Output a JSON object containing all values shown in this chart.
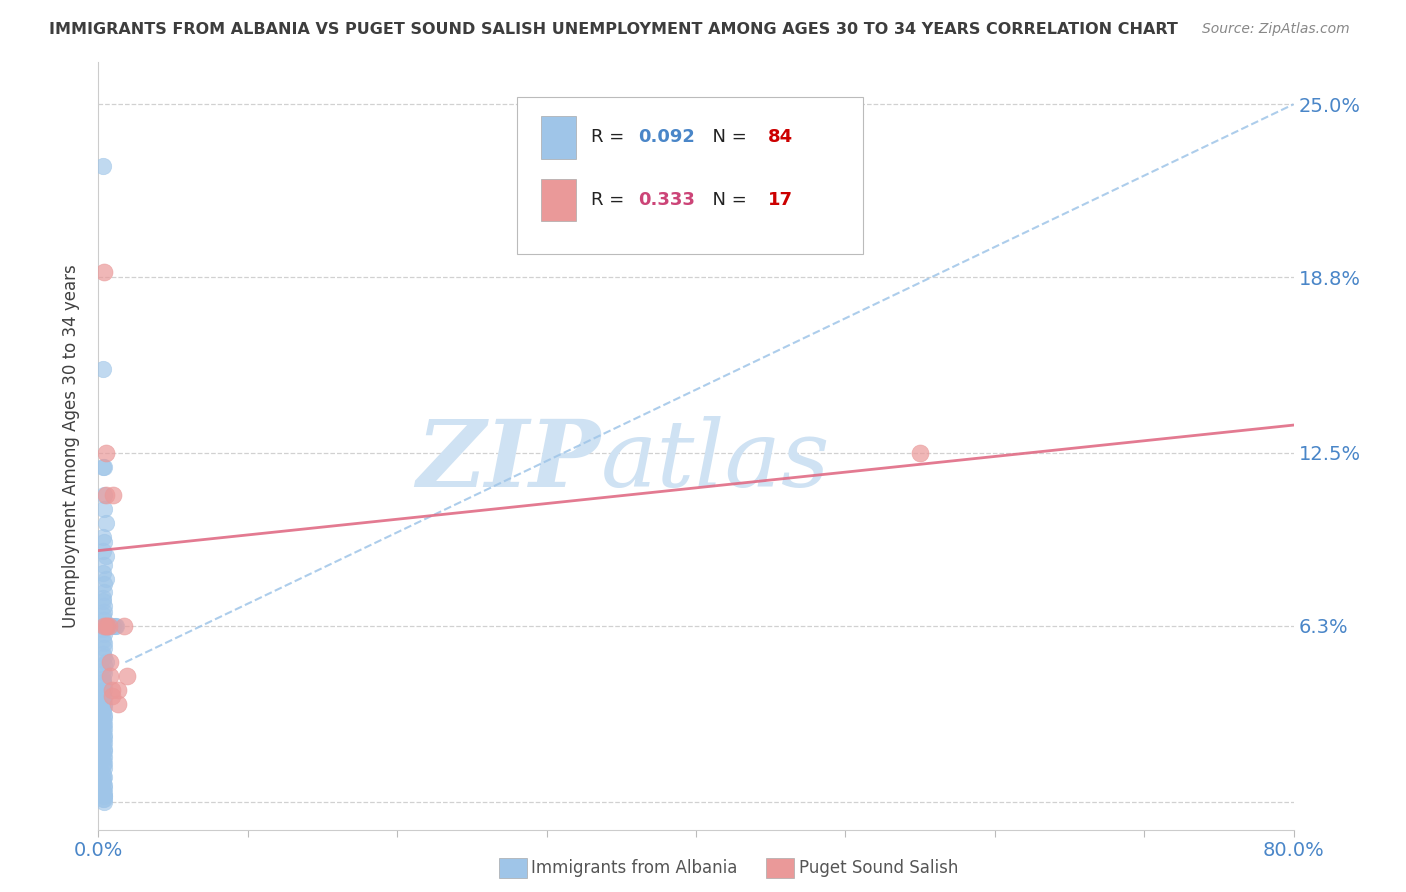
{
  "title": "IMMIGRANTS FROM ALBANIA VS PUGET SOUND SALISH UNEMPLOYMENT AMONG AGES 30 TO 34 YEARS CORRELATION CHART",
  "source": "Source: ZipAtlas.com",
  "ylabel": "Unemployment Among Ages 30 to 34 years",
  "yticks": [
    0.0,
    0.063,
    0.125,
    0.188,
    0.25
  ],
  "ytick_labels": [
    "",
    "6.3%",
    "12.5%",
    "18.8%",
    "25.0%"
  ],
  "xlim": [
    0.0,
    0.8
  ],
  "ylim": [
    -0.01,
    0.265
  ],
  "albania_R": 0.092,
  "albania_N": 84,
  "salish_R": 0.333,
  "salish_N": 17,
  "blue_color": "#9fc5e8",
  "pink_color": "#ea9999",
  "blue_line_color": "#9fc5e8",
  "pink_line_color": "#e06c85",
  "title_color": "#3d3d3d",
  "axis_label_color": "#4a86c8",
  "legend_R_color_blue": "#4a86c8",
  "legend_R_color_pink": "#cc4477",
  "legend_N_color_blue": "#cc0000",
  "legend_N_color_pink": "#cc0000",
  "watermark_color": "#cfe2f3",
  "albania_x": [
    0.003,
    0.003,
    0.004,
    0.003,
    0.004,
    0.004,
    0.005,
    0.003,
    0.004,
    0.003,
    0.005,
    0.004,
    0.003,
    0.005,
    0.004,
    0.004,
    0.003,
    0.003,
    0.004,
    0.004,
    0.003,
    0.004,
    0.004,
    0.003,
    0.004,
    0.003,
    0.004,
    0.004,
    0.003,
    0.004,
    0.005,
    0.004,
    0.003,
    0.004,
    0.003,
    0.003,
    0.004,
    0.004,
    0.003,
    0.003,
    0.004,
    0.003,
    0.004,
    0.004,
    0.003,
    0.003,
    0.004,
    0.004,
    0.003,
    0.004,
    0.003,
    0.004,
    0.003,
    0.004,
    0.004,
    0.003,
    0.004,
    0.003,
    0.004,
    0.004,
    0.003,
    0.004,
    0.003,
    0.004,
    0.003,
    0.004,
    0.003,
    0.004,
    0.003,
    0.003,
    0.004,
    0.004,
    0.003,
    0.004,
    0.003,
    0.004,
    0.004,
    0.003,
    0.004,
    0.004,
    0.01,
    0.011,
    0.009,
    0.012
  ],
  "albania_y": [
    0.228,
    0.155,
    0.12,
    0.12,
    0.11,
    0.105,
    0.1,
    0.095,
    0.093,
    0.09,
    0.088,
    0.085,
    0.082,
    0.08,
    0.078,
    0.075,
    0.073,
    0.072,
    0.07,
    0.068,
    0.067,
    0.065,
    0.063,
    0.062,
    0.06,
    0.058,
    0.057,
    0.055,
    0.053,
    0.052,
    0.05,
    0.049,
    0.047,
    0.046,
    0.044,
    0.043,
    0.042,
    0.04,
    0.039,
    0.038,
    0.037,
    0.036,
    0.035,
    0.034,
    0.033,
    0.032,
    0.031,
    0.03,
    0.029,
    0.028,
    0.027,
    0.026,
    0.025,
    0.024,
    0.023,
    0.022,
    0.021,
    0.02,
    0.019,
    0.018,
    0.017,
    0.016,
    0.015,
    0.014,
    0.013,
    0.012,
    0.01,
    0.009,
    0.008,
    0.007,
    0.006,
    0.005,
    0.004,
    0.003,
    0.003,
    0.002,
    0.002,
    0.001,
    0.001,
    0.0,
    0.063,
    0.063,
    0.063,
    0.063
  ],
  "salish_x": [
    0.004,
    0.005,
    0.005,
    0.006,
    0.007,
    0.008,
    0.008,
    0.009,
    0.009,
    0.01,
    0.013,
    0.013,
    0.017,
    0.019,
    0.55,
    0.005,
    0.004
  ],
  "salish_y": [
    0.19,
    0.125,
    0.11,
    0.063,
    0.063,
    0.05,
    0.045,
    0.04,
    0.038,
    0.11,
    0.04,
    0.035,
    0.063,
    0.045,
    0.125,
    0.063,
    0.063
  ],
  "albania_trend_x": [
    0.018,
    0.8
  ],
  "albania_trend_y": [
    0.05,
    0.25
  ],
  "salish_trend_x": [
    0.0,
    0.8
  ],
  "salish_trend_y": [
    0.09,
    0.135
  ]
}
